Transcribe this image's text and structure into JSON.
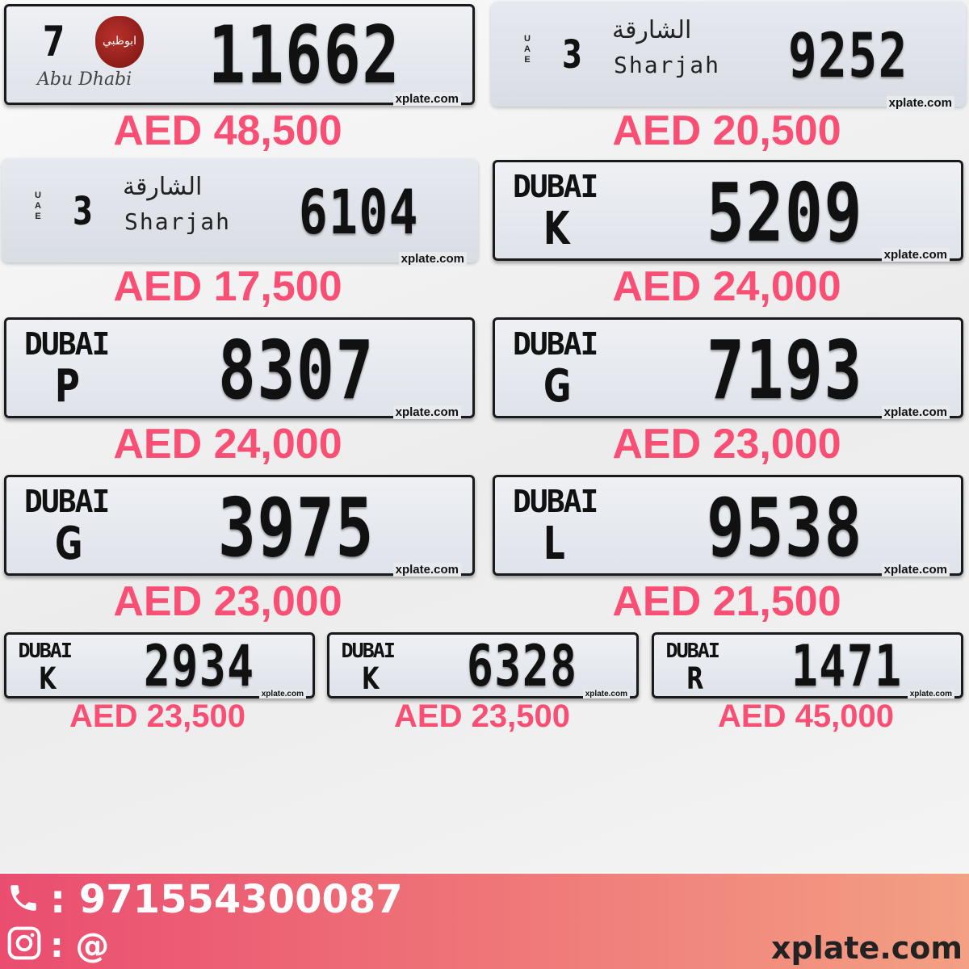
{
  "plates": [
    {
      "emirate": "Abu Dhabi",
      "type": "abudhabi",
      "code": "7",
      "number": "11662",
      "emblem_text": "Abu Dhabi",
      "watermark": "xplate.com",
      "price": "AED 48,500"
    },
    {
      "emirate": "Sharjah",
      "type": "sharjah",
      "country": "UAE",
      "code": "3",
      "arabic": "الشارقة",
      "latin": "Sharjah",
      "number": "9252",
      "watermark": "xplate.com",
      "price": "AED 20,500"
    },
    {
      "emirate": "Sharjah",
      "type": "sharjah",
      "country": "UAE",
      "code": "3",
      "arabic": "الشارقة",
      "latin": "Sharjah",
      "number": "6104",
      "watermark": "xplate.com",
      "price": "AED 17,500"
    },
    {
      "emirate": "Dubai",
      "type": "dubai",
      "logo": "DUBAI",
      "code": "K",
      "number": "5209",
      "watermark": "xplate.com",
      "price": "AED 24,000"
    },
    {
      "emirate": "Dubai",
      "type": "dubai",
      "logo": "DUBAI",
      "code": "P",
      "number": "8307",
      "watermark": "xplate.com",
      "price": "AED 24,000"
    },
    {
      "emirate": "Dubai",
      "type": "dubai",
      "logo": "DUBAI",
      "code": "G",
      "number": "7193",
      "watermark": "xplate.com",
      "price": "AED 23,000"
    },
    {
      "emirate": "Dubai",
      "type": "dubai",
      "logo": "DUBAI",
      "code": "G",
      "number": "3975",
      "watermark": "xplate.com",
      "price": "AED 23,000"
    },
    {
      "emirate": "Dubai",
      "type": "dubai",
      "logo": "DUBAI",
      "code": "L",
      "number": "9538",
      "watermark": "xplate.com",
      "price": "AED 21,500"
    },
    {
      "emirate": "Dubai",
      "type": "dubai",
      "logo": "DUBAI",
      "code": "K",
      "number": "2934",
      "watermark": "xplate.com",
      "price": "AED 23,500"
    },
    {
      "emirate": "Dubai",
      "type": "dubai",
      "logo": "DUBAI",
      "code": "K",
      "number": "6328",
      "watermark": "xplate.com",
      "price": "AED 23,500"
    },
    {
      "emirate": "Dubai",
      "type": "dubai",
      "logo": "DUBAI",
      "code": "R",
      "number": "1471",
      "watermark": "xplate.com",
      "price": "AED 45,000"
    }
  ],
  "footer": {
    "phone_label": ": 971554300087",
    "instagram_label": ": @",
    "site": "xplate.com",
    "icons": [
      "phone-icon",
      "instagram-icon"
    ]
  },
  "colors": {
    "price": "#fa4f75",
    "footer_start": "#ea4d70",
    "footer_end": "#f3a084"
  }
}
